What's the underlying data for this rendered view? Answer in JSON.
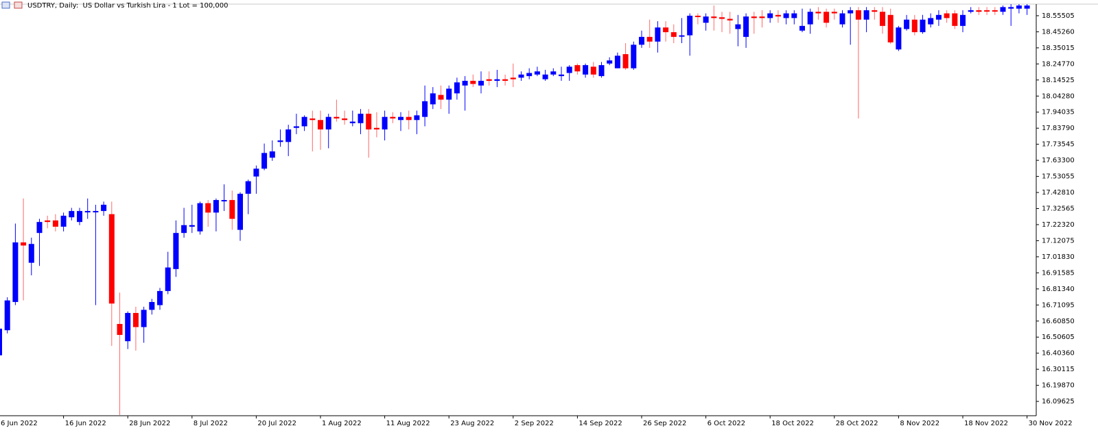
{
  "chart_data": {
    "type": "candlestick",
    "title": "USDTRY, Daily:  US Dollar vs Turkish Lira - 1 Lot = 100,000",
    "up_color": "#0000ff",
    "down_color": "#ff0000",
    "categories": [
      "6 Jun 2022",
      null,
      null,
      null,
      null,
      null,
      null,
      null,
      "16 Jun 2022",
      null,
      null,
      null,
      null,
      null,
      null,
      null,
      "28 Jun 2022",
      null,
      null,
      null,
      null,
      null,
      null,
      null,
      "8 Jul 2022",
      null,
      null,
      null,
      null,
      null,
      null,
      null,
      "20 Jul 2022",
      null,
      null,
      null,
      null,
      null,
      null,
      null,
      "1 Aug 2022",
      null,
      null,
      null,
      null,
      null,
      null,
      null,
      "11 Aug 2022",
      null,
      null,
      null,
      null,
      null,
      null,
      null,
      "23 Aug 2022",
      null,
      null,
      null,
      null,
      null,
      null,
      null,
      "2 Sep 2022",
      null,
      null,
      null,
      null,
      null,
      null,
      null,
      "14 Sep 2022",
      null,
      null,
      null,
      null,
      null,
      null,
      null,
      "26 Sep 2022",
      null,
      null,
      null,
      null,
      null,
      null,
      null,
      "6 Oct 2022",
      null,
      null,
      null,
      null,
      null,
      null,
      null,
      "18 Oct 2022",
      null,
      null,
      null,
      null,
      null,
      null,
      null,
      "28 Oct 2022",
      null,
      null,
      null,
      null,
      null,
      null,
      null,
      "8 Nov 2022",
      null,
      null,
      null,
      null,
      null,
      null,
      null,
      "18 Nov 2022",
      null,
      null,
      null,
      null,
      null,
      null,
      null,
      "30 Nov 2022"
    ],
    "open": [
      16.39,
      16.55,
      16.73,
      17.11,
      16.98,
      17.17,
      17.25,
      17.25,
      17.21,
      17.27,
      17.24,
      17.31,
      17.31,
      17.31,
      17.29,
      16.59,
      16.48,
      16.66,
      16.57,
      16.68,
      16.71,
      16.8,
      16.94,
      17.17,
      17.21,
      17.18,
      17.36,
      17.3,
      17.38,
      17.38,
      17.19,
      17.42,
      17.53,
      17.58,
      17.65,
      17.75,
      17.75,
      17.84,
      17.85,
      17.9,
      17.89,
      17.83,
      17.91,
      17.9,
      17.87,
      17.87,
      17.93,
      17.84,
      17.83,
      17.91,
      17.89,
      17.91,
      17.89,
      17.91,
      17.99,
      18.05,
      18.02,
      18.06,
      18.11,
      18.14,
      18.11,
      18.15,
      18.14,
      18.15,
      18.16,
      18.16,
      18.17,
      18.18,
      18.15,
      18.18,
      18.17,
      18.19,
      18.24,
      18.18,
      18.23,
      18.17,
      18.25,
      18.22,
      18.31,
      18.22,
      18.37,
      18.42,
      18.39,
      18.48,
      18.45,
      18.43,
      18.43,
      18.555,
      18.51,
      18.55,
      18.545,
      18.535,
      18.47,
      18.42,
      18.55,
      18.55,
      18.54,
      18.56,
      18.54,
      18.54,
      18.46,
      18.5,
      18.58,
      18.58,
      18.58,
      18.5,
      18.57,
      18.59,
      18.53,
      18.59,
      18.58,
      18.56,
      18.34,
      18.47,
      18.53,
      18.45,
      18.5,
      18.53,
      18.57,
      18.57,
      18.49,
      18.58,
      18.59,
      18.59,
      18.59,
      18.58,
      18.6,
      18.6,
      18.6
    ],
    "high": [
      16.6,
      16.76,
      17.23,
      17.39,
      17.14,
      17.26,
      17.28,
      17.29,
      17.3,
      17.33,
      17.33,
      17.39,
      17.35,
      17.37,
      17.37,
      16.79,
      16.67,
      16.7,
      16.7,
      16.75,
      16.82,
      17.05,
      17.25,
      17.33,
      17.35,
      17.37,
      17.38,
      17.39,
      17.48,
      17.44,
      17.43,
      17.51,
      17.6,
      17.74,
      17.76,
      17.83,
      17.86,
      17.93,
      17.92,
      17.95,
      17.95,
      17.93,
      18.02,
      17.95,
      17.95,
      17.96,
      17.96,
      17.94,
      17.95,
      17.94,
      17.94,
      17.95,
      17.95,
      18.11,
      18.1,
      18.11,
      18.11,
      18.16,
      18.17,
      18.18,
      18.2,
      18.2,
      18.21,
      18.18,
      18.25,
      18.2,
      18.22,
      18.23,
      18.21,
      18.22,
      18.23,
      18.24,
      18.25,
      18.25,
      18.26,
      18.26,
      18.29,
      18.32,
      18.38,
      18.39,
      18.46,
      18.53,
      18.52,
      18.52,
      18.5,
      18.54,
      18.57,
      18.57,
      18.57,
      18.62,
      18.58,
      18.58,
      18.56,
      18.57,
      18.58,
      18.59,
      18.59,
      18.59,
      18.59,
      18.59,
      18.6,
      18.6,
      18.61,
      18.6,
      18.6,
      18.59,
      18.61,
      18.61,
      18.61,
      18.61,
      18.61,
      18.6,
      18.49,
      18.56,
      18.56,
      18.56,
      18.57,
      18.59,
      18.59,
      18.59,
      18.59,
      18.61,
      18.61,
      18.61,
      18.61,
      18.62,
      18.63,
      18.63,
      18.63
    ],
    "low": [
      16.38,
      16.53,
      16.71,
      16.74,
      16.9,
      16.96,
      17.2,
      17.18,
      17.18,
      17.25,
      17.22,
      17.26,
      16.71,
      17.28,
      16.45,
      16.01,
      16.43,
      16.42,
      16.47,
      16.65,
      16.68,
      16.78,
      16.89,
      17.14,
      17.17,
      17.16,
      17.21,
      17.18,
      17.31,
      17.19,
      17.12,
      17.29,
      17.42,
      17.57,
      17.63,
      17.72,
      17.66,
      17.8,
      17.82,
      17.69,
      17.7,
      17.71,
      17.88,
      17.86,
      17.85,
      17.8,
      17.65,
      17.78,
      17.76,
      17.87,
      17.82,
      17.83,
      17.8,
      17.85,
      17.96,
      17.96,
      17.93,
      18.02,
      17.95,
      18.1,
      18.06,
      18.11,
      18.1,
      18.11,
      18.1,
      18.14,
      18.15,
      18.17,
      18.14,
      18.17,
      18.14,
      18.14,
      18.18,
      18.16,
      18.16,
      18.16,
      18.24,
      18.22,
      18.21,
      18.21,
      18.35,
      18.35,
      18.32,
      18.39,
      18.38,
      18.38,
      18.3,
      18.5,
      18.46,
      18.46,
      18.45,
      18.44,
      18.36,
      18.35,
      18.44,
      18.48,
      18.51,
      18.51,
      18.5,
      18.5,
      18.45,
      18.44,
      18.53,
      18.48,
      18.53,
      18.48,
      18.37,
      17.9,
      18.45,
      18.53,
      18.44,
      18.375,
      18.33,
      18.46,
      18.43,
      18.44,
      18.48,
      18.49,
      18.51,
      18.47,
      18.45,
      18.57,
      18.56,
      18.56,
      18.56,
      18.56,
      18.49,
      18.57,
      18.56
    ],
    "close": [
      16.56,
      16.74,
      17.11,
      17.09,
      17.1,
      17.24,
      17.24,
      17.21,
      17.28,
      17.31,
      17.31,
      17.31,
      17.31,
      17.35,
      16.72,
      16.52,
      16.66,
      16.57,
      16.68,
      16.73,
      16.8,
      16.95,
      17.17,
      17.22,
      17.22,
      17.36,
      17.3,
      17.38,
      17.38,
      17.26,
      17.42,
      17.5,
      17.58,
      17.68,
      17.69,
      17.76,
      17.83,
      17.85,
      17.91,
      17.89,
      17.83,
      17.91,
      17.9,
      17.89,
      17.88,
      17.93,
      17.83,
      17.83,
      17.91,
      17.9,
      17.91,
      17.89,
      17.92,
      18.01,
      18.06,
      18.02,
      18.09,
      18.13,
      18.14,
      18.12,
      18.14,
      18.14,
      18.15,
      18.14,
      18.15,
      18.18,
      18.19,
      18.2,
      18.18,
      18.2,
      18.18,
      18.23,
      18.2,
      18.24,
      18.18,
      18.24,
      18.27,
      18.3,
      18.22,
      18.37,
      18.42,
      18.39,
      18.48,
      18.45,
      18.42,
      18.43,
      18.555,
      18.55,
      18.55,
      18.54,
      18.535,
      18.525,
      18.5,
      18.55,
      18.54,
      18.54,
      18.57,
      18.55,
      18.57,
      18.57,
      18.49,
      18.58,
      18.57,
      18.51,
      18.57,
      18.57,
      18.59,
      18.53,
      18.59,
      18.58,
      18.49,
      18.385,
      18.48,
      18.53,
      18.45,
      18.53,
      18.54,
      18.56,
      18.54,
      18.49,
      18.56,
      18.59,
      18.58,
      18.585,
      18.585,
      18.61,
      18.61,
      18.62,
      18.62
    ],
    "ylim": [
      16.005,
      18.629
    ],
    "yticks": [
      16.09625,
      {
        "value": 16.1987,
        "label": "16.19870"
      },
      16.30115,
      {
        "value": 16.4036,
        "label": "16.40360"
      },
      16.50605,
      {
        "value": 16.6085,
        "label": "16.60850"
      },
      16.71095,
      {
        "value": 16.8134,
        "label": "16.81340"
      },
      16.91585,
      {
        "value": 17.0183,
        "label": "17.01830"
      },
      17.12075,
      {
        "value": 17.2232,
        "label": "17.22320"
      },
      17.32565,
      {
        "value": 17.4281,
        "label": "17.42810"
      },
      17.53055,
      {
        "value": 17.633,
        "label": "17.63300"
      },
      17.73545,
      {
        "value": 17.8379,
        "label": "17.83790"
      },
      17.94035,
      {
        "value": 18.0428,
        "label": "18.04280"
      },
      18.14525,
      {
        "value": 18.2477,
        "label": "18.24770"
      },
      18.35015,
      {
        "value": 18.4526,
        "label": "18.45260"
      },
      18.55505
    ],
    "grid": false
  }
}
